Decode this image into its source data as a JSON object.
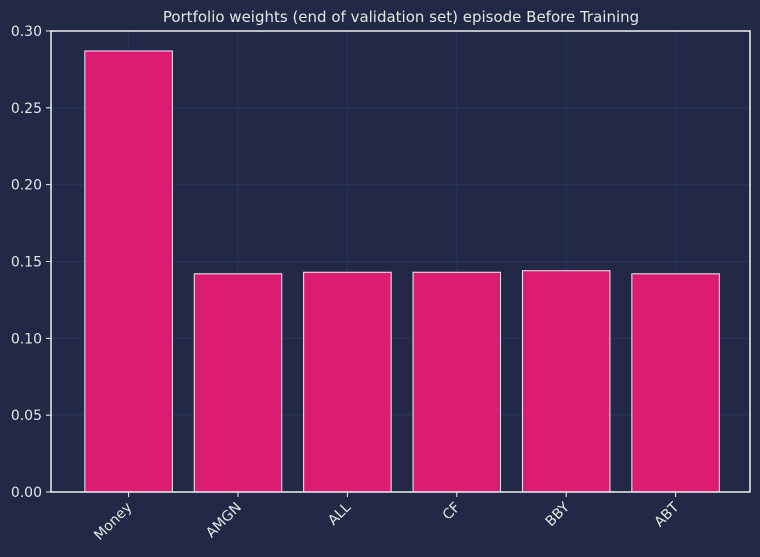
{
  "chart_data": {
    "type": "bar",
    "title": "Portfolio weights (end of validation set) episode Before Training",
    "xlabel": "",
    "ylabel": "",
    "categories": [
      "Money",
      "AMGN",
      "ALL",
      "CF",
      "BBY",
      "ABT"
    ],
    "values": [
      0.287,
      0.142,
      0.143,
      0.143,
      0.144,
      0.142
    ],
    "ylim": [
      0,
      0.3
    ],
    "yticks": [
      "0.00",
      "0.05",
      "0.10",
      "0.15",
      "0.20",
      "0.25",
      "0.30"
    ],
    "grid": true,
    "legend": "none"
  },
  "colors": {
    "background": "#212946",
    "bar_fill": "#db1c72",
    "bar_edge": "#f2f2f2",
    "axis": "#f2f2f2",
    "grid": "#2a3459",
    "text": "#e6e6e6"
  }
}
